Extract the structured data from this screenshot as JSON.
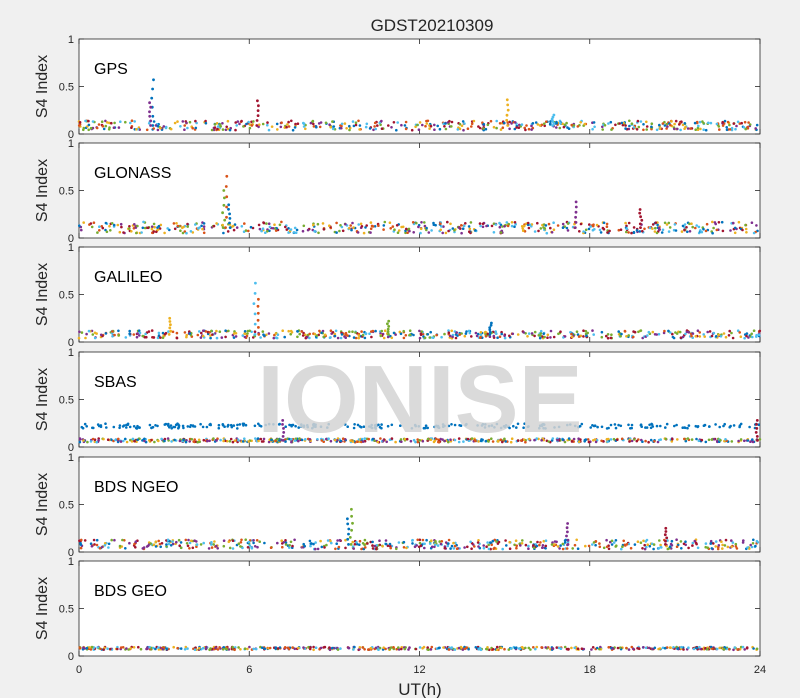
{
  "figure": {
    "title": "GDST20210309",
    "watermark": "IONISE",
    "xlabel": "UT(h)"
  },
  "chart_data": {
    "type": "scatter",
    "title": "GDST20210309",
    "xlabel": "UT(h)",
    "ylabel": "S4 Index",
    "xlim": [
      0,
      24
    ],
    "ylim": [
      0,
      1
    ],
    "xticks": [
      0,
      6,
      12,
      18,
      24
    ],
    "yticks": [
      0,
      0.5,
      1
    ],
    "colors": [
      "#0072BD",
      "#D95319",
      "#EDB120",
      "#7E2F8E",
      "#77AC30",
      "#4DBEEE",
      "#A2142F"
    ],
    "panels": [
      {
        "label": "GPS",
        "baseline": 0.09,
        "spread": 0.05,
        "spikes": [
          [
            2.6,
            0.57
          ],
          [
            2.5,
            0.33
          ],
          [
            6.3,
            0.35
          ],
          [
            15.1,
            0.36
          ],
          [
            16.7,
            0.2
          ]
        ]
      },
      {
        "label": "GLONASS",
        "baseline": 0.11,
        "spread": 0.06,
        "spikes": [
          [
            5.2,
            0.65
          ],
          [
            5.1,
            0.5
          ],
          [
            5.3,
            0.35
          ],
          [
            17.5,
            0.38
          ],
          [
            19.8,
            0.3
          ]
        ]
      },
      {
        "label": "GALILEO",
        "baseline": 0.08,
        "spread": 0.04,
        "spikes": [
          [
            3.2,
            0.25
          ],
          [
            6.2,
            0.62
          ],
          [
            6.3,
            0.45
          ],
          [
            10.9,
            0.22
          ],
          [
            14.5,
            0.2
          ]
        ]
      },
      {
        "label": "SBAS",
        "baseline": 0.07,
        "spread": 0.02,
        "upper": 0.22,
        "spikes": [
          [
            7.2,
            0.28
          ],
          [
            23.9,
            0.28
          ]
        ]
      },
      {
        "label": "BDS NGEO",
        "baseline": 0.08,
        "spread": 0.05,
        "spikes": [
          [
            9.6,
            0.45
          ],
          [
            9.5,
            0.35
          ],
          [
            17.2,
            0.3
          ],
          [
            20.7,
            0.25
          ]
        ]
      },
      {
        "label": "BDS GEO",
        "baseline": 0.08,
        "spread": 0.015,
        "spikes": []
      }
    ]
  }
}
